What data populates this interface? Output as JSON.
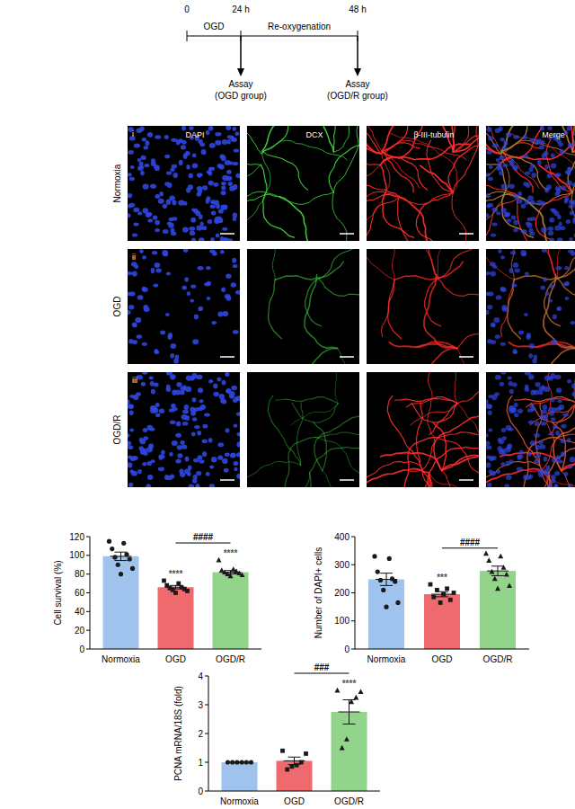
{
  "timeline": {
    "ticks": [
      "0",
      "24 h",
      "48 h"
    ],
    "phases": [
      "OGD",
      "Re-oxygenation"
    ],
    "assays": [
      {
        "label": "Assay",
        "group": "(OGD group)"
      },
      {
        "label": "Assay",
        "group": "(OGD/R group)"
      }
    ]
  },
  "micrographs": {
    "rows": [
      "Normoxia",
      "OGD",
      "OGD/R"
    ],
    "row_tags": [
      "i",
      "ii",
      "iii"
    ],
    "columns": [
      "DAPI",
      "DCX",
      "β-III-tubulin",
      "Merge"
    ]
  },
  "chart_data": [
    {
      "type": "bar",
      "y_label": "Cell survival (%)",
      "categories": [
        "Normoxia",
        "OGD",
        "OGD/R"
      ],
      "values": [
        99,
        66,
        82
      ],
      "errors": [
        4.5,
        1.8,
        1.8
      ],
      "points": [
        [
          115,
          113,
          107,
          101,
          98,
          96,
          90,
          86,
          80
        ],
        [
          73,
          70,
          68,
          66,
          65,
          64,
          63,
          62,
          60
        ],
        [
          95,
          85,
          84,
          83,
          82,
          81,
          80,
          79,
          78
        ]
      ],
      "colors": [
        "#9fc3ec",
        "#ef6a6f",
        "#93d48b"
      ],
      "ylim": [
        0,
        120
      ],
      "yticks": [
        0,
        20,
        40,
        60,
        80,
        100,
        120
      ],
      "grid": false,
      "annotations": [
        {
          "category": "OGD",
          "text": "****"
        },
        {
          "category": "OGD/R",
          "text": "****"
        },
        {
          "from": "OGD",
          "to": "OGD/R",
          "text": "####"
        }
      ]
    },
    {
      "type": "bar",
      "y_label": "Number of DAPI+ cells",
      "categories": [
        "Normoxia",
        "OGD",
        "OGD/R"
      ],
      "values": [
        248,
        195,
        278
      ],
      "errors": [
        22,
        9,
        17
      ],
      "points": [
        [
          330,
          322,
          275,
          250,
          245,
          240,
          210,
          165,
          150
        ],
        [
          230,
          215,
          210,
          200,
          195,
          185,
          175,
          165
        ],
        [
          340,
          330,
          315,
          290,
          275,
          265,
          250,
          225,
          215
        ]
      ],
      "colors": [
        "#9fc3ec",
        "#ef6a6f",
        "#93d48b"
      ],
      "ylim": [
        0,
        400
      ],
      "yticks": [
        0,
        100,
        200,
        300,
        400
      ],
      "grid": false,
      "annotations": [
        {
          "category": "OGD",
          "text": "***"
        },
        {
          "from": "OGD",
          "to": "OGD/R",
          "text": "####"
        }
      ]
    },
    {
      "type": "bar",
      "y_label": "PCNA mRNA/18S (fold)",
      "categories": [
        "Normoxia",
        "OGD",
        "OGD/R"
      ],
      "values": [
        1.0,
        1.05,
        2.75
      ],
      "errors": [
        0.01,
        0.13,
        0.42
      ],
      "points": [
        [
          1,
          1,
          1,
          1,
          1,
          1
        ],
        [
          1.4,
          1.3,
          1.0,
          0.9,
          0.85,
          0.75
        ],
        [
          3.5,
          3.45,
          3.25,
          3.1,
          1.8,
          1.5
        ]
      ],
      "colors": [
        "#9fc3ec",
        "#ef6a6f",
        "#93d48b"
      ],
      "ylim": [
        0,
        4
      ],
      "yticks": [
        0,
        1,
        2,
        3,
        4
      ],
      "grid": false,
      "annotations": [
        {
          "category": "OGD/R",
          "text": "****"
        },
        {
          "from": "OGD",
          "to": "OGD/R",
          "text": "###"
        }
      ]
    }
  ]
}
